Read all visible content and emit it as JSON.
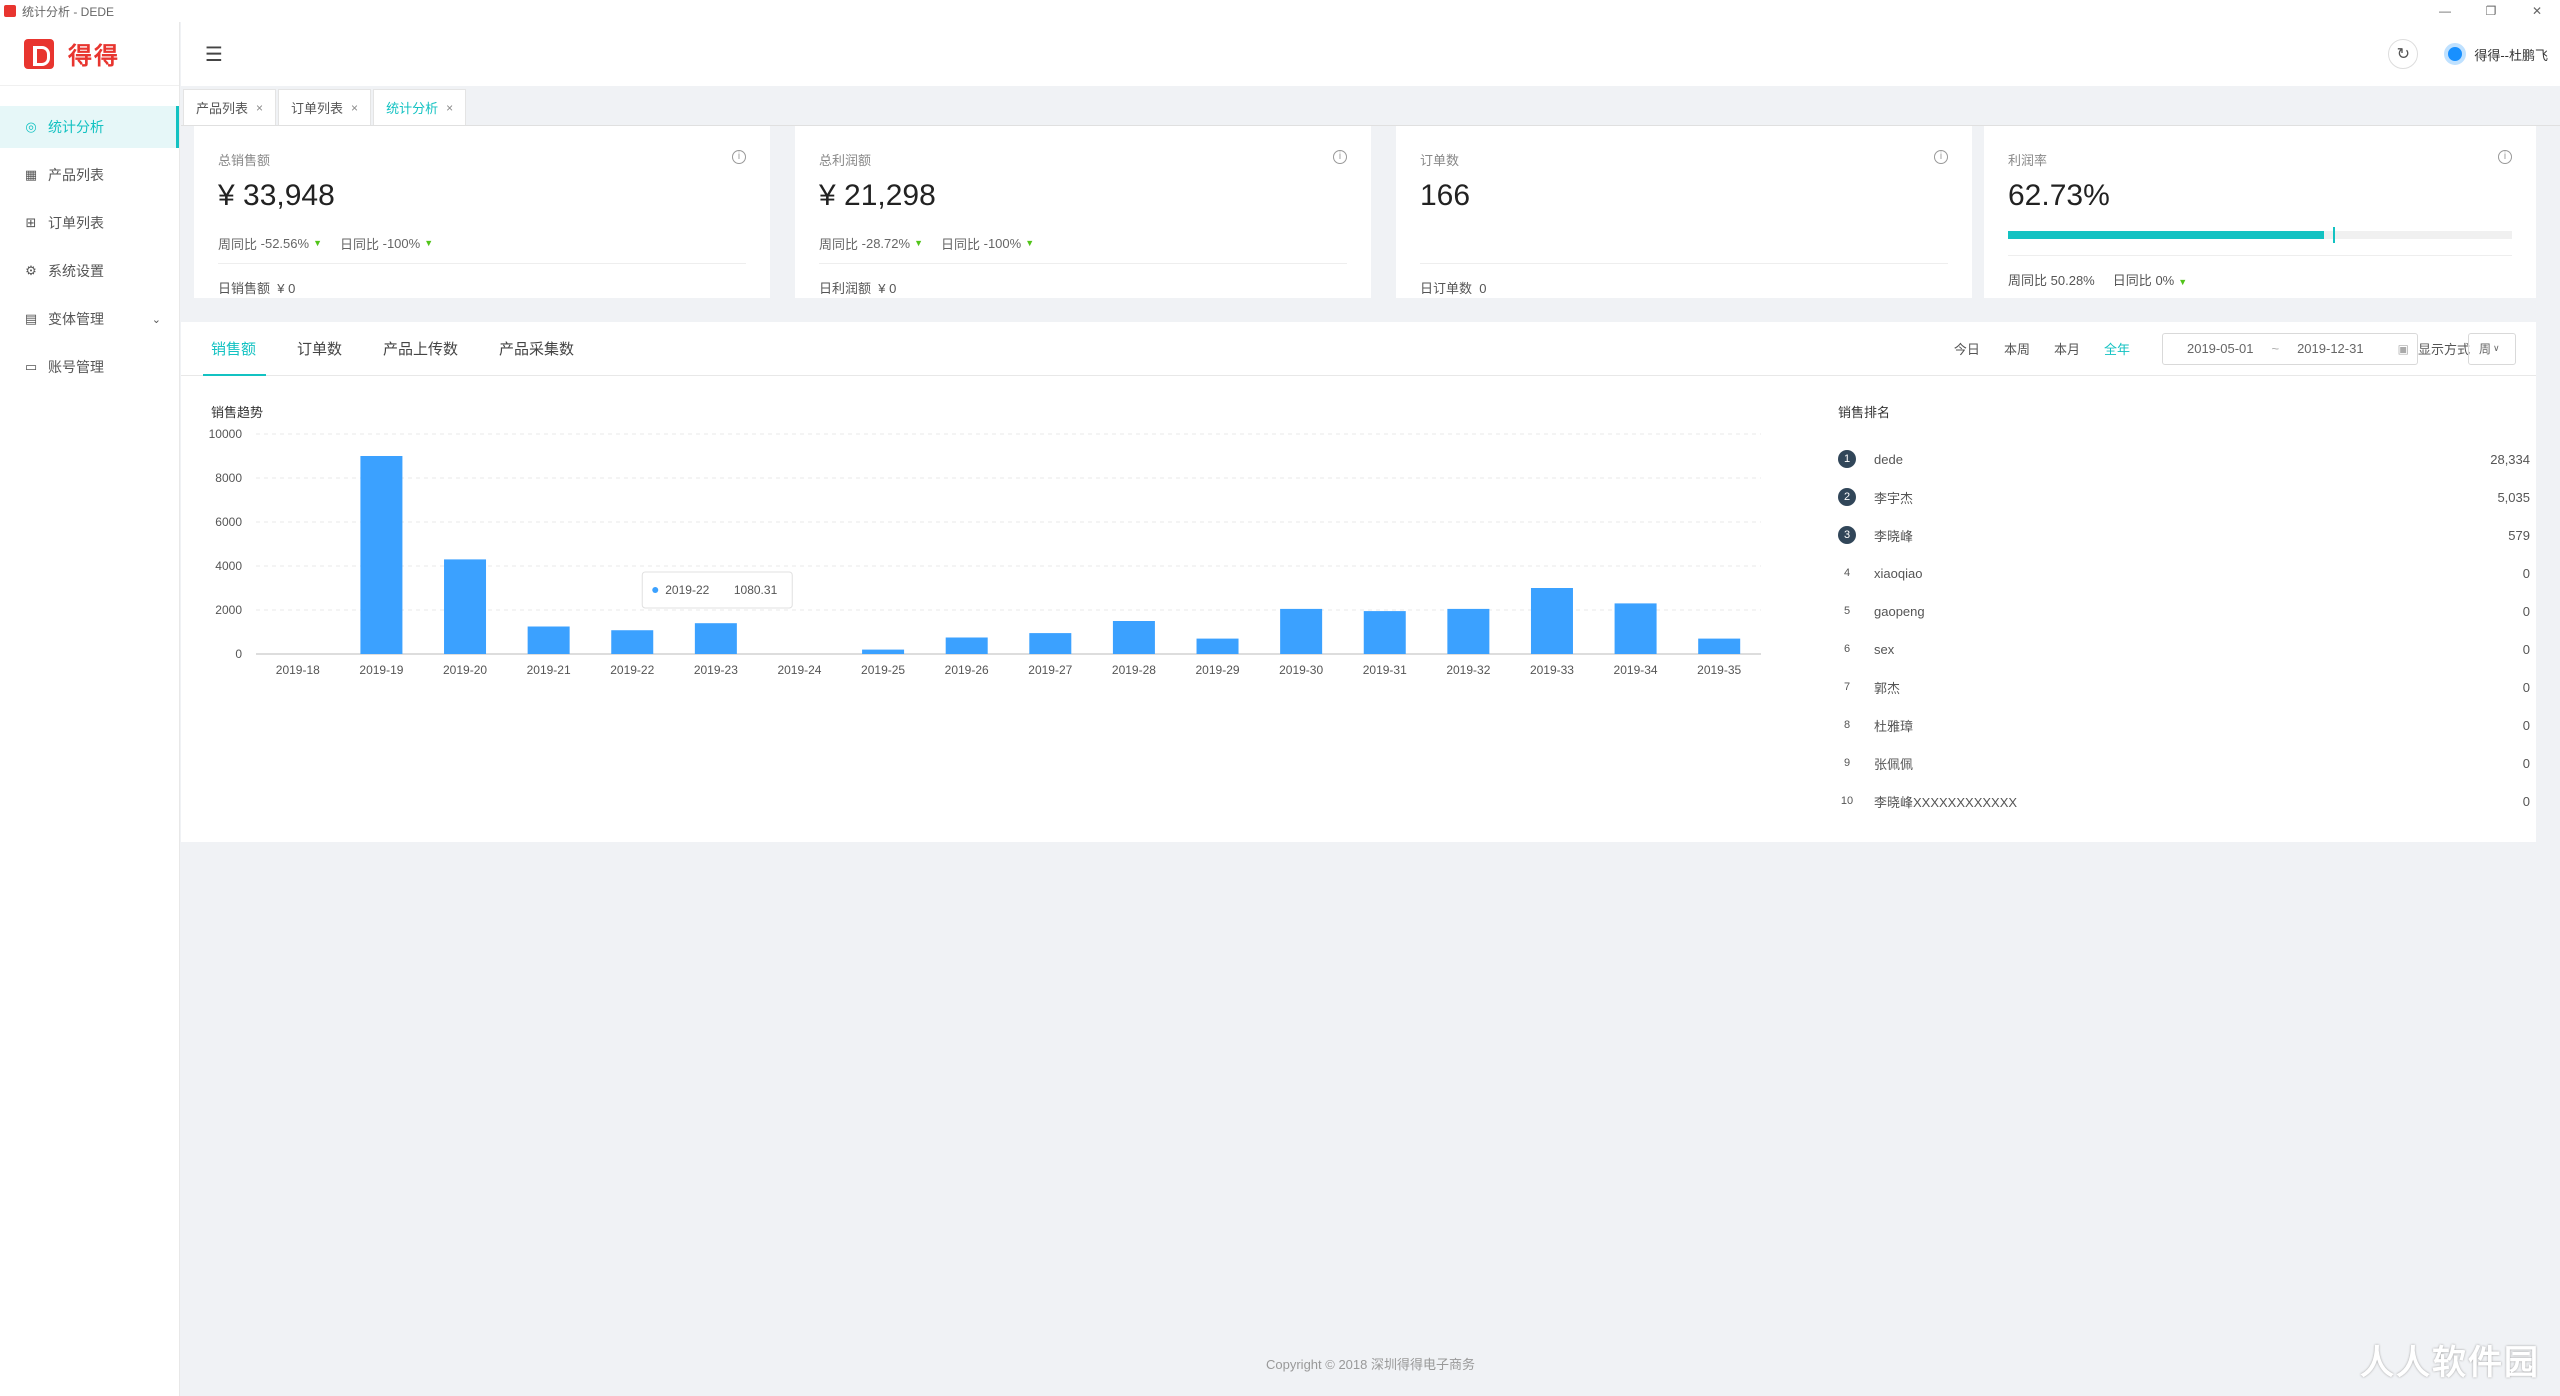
{
  "window": {
    "title": "统计分析 - DEDE",
    "controls": [
      "—",
      "❐",
      "✕"
    ]
  },
  "logo": {
    "text": "得得"
  },
  "sidebar": {
    "items": [
      {
        "label": "统计分析",
        "icon": "dashboard-icon",
        "glyph": "◎",
        "active": true
      },
      {
        "label": "产品列表",
        "icon": "table-icon",
        "glyph": "▦"
      },
      {
        "label": "订单列表",
        "icon": "cart-icon",
        "glyph": "⊞"
      },
      {
        "label": "系统设置",
        "icon": "gear-icon",
        "glyph": "⚙"
      },
      {
        "label": "变体管理",
        "icon": "book-icon",
        "glyph": "▤",
        "expandable": true
      },
      {
        "label": "账号管理",
        "icon": "id-card-icon",
        "glyph": "▭"
      }
    ]
  },
  "header": {
    "fold_glyph": "☰",
    "refresh_glyph": "↻",
    "username": "得得--杜鹏飞"
  },
  "tabs": [
    {
      "label": "产品列表",
      "close": "×"
    },
    {
      "label": "订单列表",
      "close": "×"
    },
    {
      "label": "统计分析",
      "close": "×",
      "active": true
    }
  ],
  "cards": [
    {
      "title": "总销售额",
      "value": "¥ 33,948",
      "wow_label": "周同比",
      "wow": "-52.56%",
      "dod_label": "日同比",
      "dod": "-100%",
      "foot_label": "日销售额",
      "foot_value": "¥ 0"
    },
    {
      "title": "总利润额",
      "value": "¥ 21,298",
      "wow_label": "周同比",
      "wow": "-28.72%",
      "dod_label": "日同比",
      "dod": "-100%",
      "foot_label": "日利润额",
      "foot_value": "¥ 0"
    },
    {
      "title": "订单数",
      "value": "166",
      "foot_label": "日订单数",
      "foot_value": "0"
    },
    {
      "title": "利润率",
      "value": "62.73%",
      "progress": 0.627,
      "target": 0.5,
      "wow_label": "周同比",
      "wow": "50.28%",
      "dod_label": "日同比",
      "dod": "0%"
    }
  ],
  "panel": {
    "tabs": [
      "销售额",
      "订单数",
      "产品上传数",
      "产品采集数"
    ],
    "ranges": [
      "今日",
      "本周",
      "本月",
      "全年"
    ],
    "active_range": "全年",
    "date_start": "2019-05-01",
    "date_sep": "~",
    "date_end": "2019-12-31",
    "display_label": "显示方式",
    "display_value": "周",
    "chart_title": "销售趋势",
    "rank_title": "销售排名"
  },
  "chart_data": {
    "type": "bar",
    "title": "销售趋势",
    "categories": [
      "2019-18",
      "2019-19",
      "2019-20",
      "2019-21",
      "2019-22",
      "2019-23",
      "2019-24",
      "2019-25",
      "2019-26",
      "2019-27",
      "2019-28",
      "2019-29",
      "2019-30",
      "2019-31",
      "2019-32",
      "2019-33",
      "2019-34",
      "2019-35"
    ],
    "values": [
      0,
      9000,
      4300,
      1250,
      1080.31,
      1400,
      0,
      200,
      750,
      950,
      1500,
      700,
      2050,
      1950,
      2050,
      3000,
      2300,
      700
    ],
    "ylim": [
      0,
      10000
    ],
    "yticks": [
      0,
      2000,
      4000,
      6000,
      8000,
      10000
    ],
    "color": "#3ba1ff",
    "tooltip": {
      "label": "2019-22",
      "value": "1080.31"
    }
  },
  "ranking": [
    {
      "rank": "1",
      "name": "dede",
      "value": "28,334"
    },
    {
      "rank": "2",
      "name": "李宇杰",
      "value": "5,035"
    },
    {
      "rank": "3",
      "name": "李晓峰",
      "value": "579"
    },
    {
      "rank": "4",
      "name": "xiaoqiao",
      "value": "0"
    },
    {
      "rank": "5",
      "name": "gaopeng",
      "value": "0"
    },
    {
      "rank": "6",
      "name": "sex",
      "value": "0"
    },
    {
      "rank": "7",
      "name": "郭杰",
      "value": "0"
    },
    {
      "rank": "8",
      "name": "杜雅璋",
      "value": "0"
    },
    {
      "rank": "9",
      "name": "张佩佩",
      "value": "0"
    },
    {
      "rank": "10",
      "name": "李晓峰XXXXXXXXXXXX",
      "value": "0"
    }
  ],
  "footer": "Copyright © 2018 深圳得得电子商务",
  "watermark": "人人软件园"
}
